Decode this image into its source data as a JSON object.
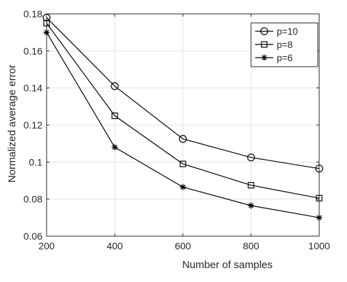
{
  "chart_data": {
    "type": "line",
    "title": "",
    "xlabel": "Number of samples",
    "ylabel": "Normalized average error",
    "x": [
      200,
      400,
      600,
      800,
      1000
    ],
    "xlim": [
      200,
      1000
    ],
    "ylim": [
      0.06,
      0.18
    ],
    "xticks": [
      200,
      400,
      600,
      800,
      1000
    ],
    "xtick_labels": [
      "200",
      "400",
      "600",
      "800",
      "1000"
    ],
    "yticks": [
      0.06,
      0.08,
      0.1,
      0.12,
      0.14,
      0.16,
      0.18
    ],
    "ytick_labels": [
      "0.06",
      "0.08",
      "0.1",
      "0.12",
      "0.14",
      "0.16",
      "0.18"
    ],
    "grid": true,
    "legend_position": "top-right",
    "line_color": "#000000",
    "series": [
      {
        "name": "p=10",
        "marker": "circle",
        "values": [
          0.178,
          0.141,
          0.1125,
          0.1025,
          0.0965
        ]
      },
      {
        "name": "p=8",
        "marker": "square",
        "values": [
          0.175,
          0.125,
          0.099,
          0.0875,
          0.0805
        ]
      },
      {
        "name": "p=6",
        "marker": "asterisk",
        "values": [
          0.17,
          0.108,
          0.0865,
          0.0765,
          0.07
        ]
      }
    ]
  }
}
